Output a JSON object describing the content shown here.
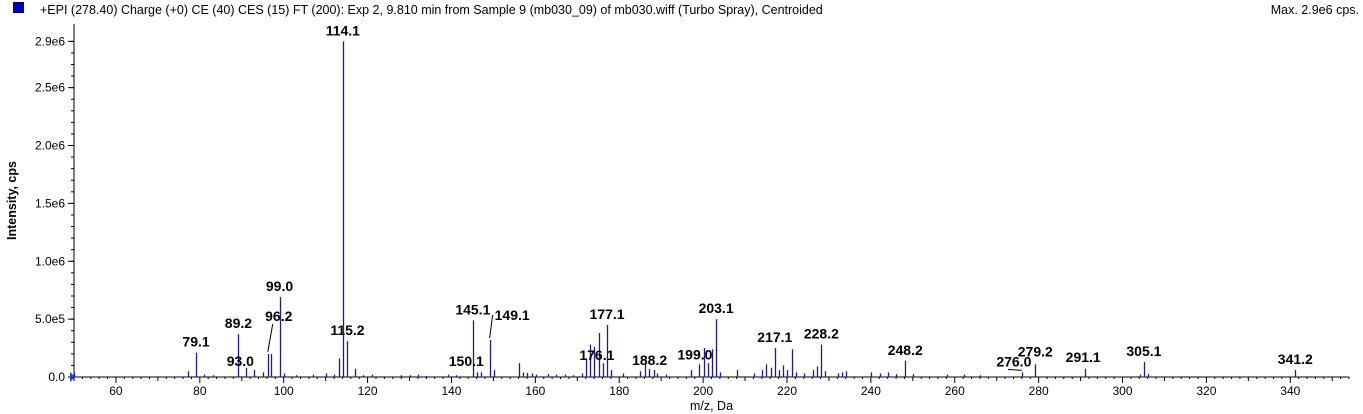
{
  "header": {
    "title": "+EPI (278.40) Charge (+0) CE (40) CES (15) FT (200): Exp 2, 9.810 min from Sample 9 (mb030_09) of mb030.wiff (Turbo Spray), Centroided",
    "max_label": "Max. 2.9e6 cps.",
    "swatch_color": "#0000c8"
  },
  "chart_data": {
    "type": "bar",
    "xlabel": "m/z, Da",
    "ylabel": "Intensity, cps",
    "xlim": [
      50,
      354
    ],
    "ylim": [
      0,
      3050000
    ],
    "x_ticks": [
      60,
      80,
      100,
      120,
      140,
      160,
      180,
      200,
      220,
      240,
      260,
      280,
      300,
      320,
      340
    ],
    "y_ticks": [
      {
        "value": 0,
        "label": "0.0"
      },
      {
        "value": 500000,
        "label": "5.0e5"
      },
      {
        "value": 1000000,
        "label": "1.0e6"
      },
      {
        "value": 1500000,
        "label": "1.5e6"
      },
      {
        "value": 2000000,
        "label": "2.0e6"
      },
      {
        "value": 2500000,
        "label": "2.5e6"
      },
      {
        "value": 2900000,
        "label": "2.9e6"
      }
    ],
    "peak_color": "#1c1c8c",
    "peaks": [
      {
        "mz": 50.0,
        "intensity": 40000
      },
      {
        "mz": 77.1,
        "intensity": 50000
      },
      {
        "mz": 79.1,
        "intensity": 210000,
        "label": "79.1"
      },
      {
        "mz": 81.0,
        "intensity": 20000
      },
      {
        "mz": 83.1,
        "intensity": 15000
      },
      {
        "mz": 89.2,
        "intensity": 370000,
        "label": "89.2"
      },
      {
        "mz": 91.0,
        "intensity": 80000
      },
      {
        "mz": 93.0,
        "intensity": 60000,
        "label": "93.0"
      },
      {
        "mz": 95.0,
        "intensity": 40000
      },
      {
        "mz": 96.2,
        "intensity": 200000,
        "label": "96.2"
      },
      {
        "mz": 97.0,
        "intensity": 200000
      },
      {
        "mz": 99.0,
        "intensity": 690000,
        "label": "99.0"
      },
      {
        "mz": 100.1,
        "intensity": 30000
      },
      {
        "mz": 103.0,
        "intensity": 15000
      },
      {
        "mz": 107.1,
        "intensity": 20000
      },
      {
        "mz": 110.1,
        "intensity": 30000
      },
      {
        "mz": 112.1,
        "intensity": 20000
      },
      {
        "mz": 113.1,
        "intensity": 160000
      },
      {
        "mz": 114.1,
        "intensity": 2900000,
        "label": "114.1"
      },
      {
        "mz": 115.2,
        "intensity": 310000,
        "label": "115.2"
      },
      {
        "mz": 117.1,
        "intensity": 70000
      },
      {
        "mz": 119.0,
        "intensity": 15000
      },
      {
        "mz": 121.1,
        "intensity": 20000
      },
      {
        "mz": 128.0,
        "intensity": 15000
      },
      {
        "mz": 130.1,
        "intensity": 15000
      },
      {
        "mz": 132.1,
        "intensity": 20000
      },
      {
        "mz": 134.0,
        "intensity": 10000
      },
      {
        "mz": 139.1,
        "intensity": 20000
      },
      {
        "mz": 141.1,
        "intensity": 15000
      },
      {
        "mz": 145.1,
        "intensity": 490000,
        "label": "145.1"
      },
      {
        "mz": 146.1,
        "intensity": 40000
      },
      {
        "mz": 147.1,
        "intensity": 40000
      },
      {
        "mz": 149.1,
        "intensity": 320000,
        "label": "149.1"
      },
      {
        "mz": 150.1,
        "intensity": 60000,
        "label": "150.1"
      },
      {
        "mz": 156.1,
        "intensity": 120000
      },
      {
        "mz": 157.0,
        "intensity": 40000
      },
      {
        "mz": 158.1,
        "intensity": 35000
      },
      {
        "mz": 159.1,
        "intensity": 30000
      },
      {
        "mz": 160.1,
        "intensity": 20000
      },
      {
        "mz": 163.1,
        "intensity": 25000
      },
      {
        "mz": 165.0,
        "intensity": 20000
      },
      {
        "mz": 167.0,
        "intensity": 20000
      },
      {
        "mz": 169.0,
        "intensity": 15000
      },
      {
        "mz": 171.1,
        "intensity": 30000
      },
      {
        "mz": 172.1,
        "intensity": 160000
      },
      {
        "mz": 173.1,
        "intensity": 280000
      },
      {
        "mz": 174.1,
        "intensity": 260000
      },
      {
        "mz": 175.1,
        "intensity": 380000
      },
      {
        "mz": 176.1,
        "intensity": 120000,
        "label": "176.1"
      },
      {
        "mz": 177.1,
        "intensity": 450000,
        "label": "177.1"
      },
      {
        "mz": 178.1,
        "intensity": 60000
      },
      {
        "mz": 181.0,
        "intensity": 30000
      },
      {
        "mz": 185.0,
        "intensity": 50000
      },
      {
        "mz": 186.1,
        "intensity": 110000
      },
      {
        "mz": 187.1,
        "intensity": 70000
      },
      {
        "mz": 188.2,
        "intensity": 60000,
        "label": "188.2"
      },
      {
        "mz": 189.1,
        "intensity": 30000
      },
      {
        "mz": 191.1,
        "intensity": 20000
      },
      {
        "mz": 197.1,
        "intensity": 60000
      },
      {
        "mz": 199.0,
        "intensity": 110000,
        "label": "199.0"
      },
      {
        "mz": 200.1,
        "intensity": 250000
      },
      {
        "mz": 201.1,
        "intensity": 120000
      },
      {
        "mz": 202.1,
        "intensity": 240000
      },
      {
        "mz": 203.1,
        "intensity": 500000,
        "label": "203.1"
      },
      {
        "mz": 204.1,
        "intensity": 40000
      },
      {
        "mz": 208.1,
        "intensity": 60000
      },
      {
        "mz": 212.1,
        "intensity": 30000
      },
      {
        "mz": 214.1,
        "intensity": 60000
      },
      {
        "mz": 215.1,
        "intensity": 110000
      },
      {
        "mz": 216.1,
        "intensity": 80000
      },
      {
        "mz": 217.1,
        "intensity": 250000,
        "label": "217.1"
      },
      {
        "mz": 218.1,
        "intensity": 60000
      },
      {
        "mz": 219.1,
        "intensity": 100000
      },
      {
        "mz": 220.1,
        "intensity": 60000
      },
      {
        "mz": 221.1,
        "intensity": 240000
      },
      {
        "mz": 222.1,
        "intensity": 40000
      },
      {
        "mz": 224.1,
        "intensity": 30000
      },
      {
        "mz": 226.1,
        "intensity": 60000
      },
      {
        "mz": 227.1,
        "intensity": 90000
      },
      {
        "mz": 228.2,
        "intensity": 280000,
        "label": "228.2"
      },
      {
        "mz": 229.1,
        "intensity": 50000
      },
      {
        "mz": 232.1,
        "intensity": 30000
      },
      {
        "mz": 233.1,
        "intensity": 40000
      },
      {
        "mz": 234.1,
        "intensity": 50000
      },
      {
        "mz": 240.1,
        "intensity": 40000
      },
      {
        "mz": 242.1,
        "intensity": 30000
      },
      {
        "mz": 244.1,
        "intensity": 40000
      },
      {
        "mz": 246.1,
        "intensity": 25000
      },
      {
        "mz": 248.2,
        "intensity": 140000,
        "label": "248.2"
      },
      {
        "mz": 250.1,
        "intensity": 25000
      },
      {
        "mz": 258.1,
        "intensity": 20000
      },
      {
        "mz": 262.1,
        "intensity": 20000
      },
      {
        "mz": 266.1,
        "intensity": 15000
      },
      {
        "mz": 276.0,
        "intensity": 40000,
        "label": "276.0"
      },
      {
        "mz": 279.2,
        "intensity": 110000,
        "label": "279.2"
      },
      {
        "mz": 291.1,
        "intensity": 70000,
        "label": "291.1"
      },
      {
        "mz": 304.1,
        "intensity": 20000
      },
      {
        "mz": 305.1,
        "intensity": 130000,
        "label": "305.1"
      },
      {
        "mz": 306.1,
        "intensity": 25000
      },
      {
        "mz": 341.2,
        "intensity": 60000,
        "label": "341.2"
      }
    ],
    "label_offsets": {
      "93.0": [
        -14,
        -4,
        "middle"
      ],
      "96.2": [
        11,
        -33,
        "middle"
      ],
      "99.0": [
        0,
        -6,
        "middle"
      ],
      "114.1": [
        0,
        -6,
        "middle"
      ],
      "115.2": [
        0,
        -6,
        "middle"
      ],
      "145.1": [
        0,
        -6,
        "middle"
      ],
      "149.1": [
        5,
        -20,
        "start"
      ],
      "150.1": [
        -10,
        -4,
        "end"
      ],
      "176.1": [
        -6,
        -3,
        "middle"
      ],
      "188.2": [
        -4,
        -5,
        "middle"
      ],
      "199.0": [
        -4,
        -5,
        "middle"
      ],
      "276.0": [
        -8,
        -6,
        "middle"
      ],
      "279.2": [
        0,
        -8,
        "middle"
      ],
      "291.1": [
        -2,
        -7,
        "middle"
      ]
    },
    "leader_lines": [
      "96.2",
      "149.1",
      "276.0"
    ]
  }
}
